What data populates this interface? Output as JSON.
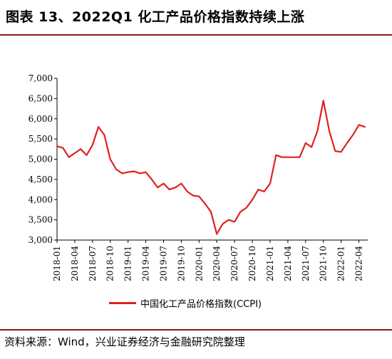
{
  "header": {
    "title": "图表 13、2022Q1 化工产品价格指数持续上涨"
  },
  "footer": {
    "source": "资料来源：Wind，兴业证券经济与金融研究院整理"
  },
  "colors": {
    "line": "#e02020",
    "rule": "#8b1a1a",
    "axis": "#000000"
  },
  "chart_data": {
    "type": "line",
    "title": "",
    "xlabel": "",
    "ylabel": "",
    "ylim": [
      3000,
      7000
    ],
    "yticks": [
      3000,
      3500,
      4000,
      4500,
      5000,
      5500,
      6000,
      6500,
      7000
    ],
    "ytick_labels": [
      "3,000",
      "3,500",
      "4,000",
      "4,500",
      "5,000",
      "5,500",
      "6,000",
      "6,500",
      "7,000"
    ],
    "xticks": [
      "2018-01",
      "2018-04",
      "2018-07",
      "2018-10",
      "2019-01",
      "2019-04",
      "2019-07",
      "2019-10",
      "2020-01",
      "2020-04",
      "2020-07",
      "2020-10",
      "2021-01",
      "2021-04",
      "2021-07",
      "2021-10",
      "2022-01",
      "2022-04"
    ],
    "grid": false,
    "legend_position": "bottom",
    "series": [
      {
        "name": "中国化工产品价格指数(CCPI)",
        "x": [
          "2018-01",
          "2018-02",
          "2018-03",
          "2018-04",
          "2018-05",
          "2018-06",
          "2018-07",
          "2018-08",
          "2018-09",
          "2018-10",
          "2018-11",
          "2018-12",
          "2019-01",
          "2019-02",
          "2019-03",
          "2019-04",
          "2019-05",
          "2019-06",
          "2019-07",
          "2019-08",
          "2019-09",
          "2019-10",
          "2019-11",
          "2019-12",
          "2020-01",
          "2020-02",
          "2020-03",
          "2020-04",
          "2020-05",
          "2020-06",
          "2020-07",
          "2020-08",
          "2020-09",
          "2020-10",
          "2020-11",
          "2020-12",
          "2021-01",
          "2021-02",
          "2021-03",
          "2021-04",
          "2021-05",
          "2021-06",
          "2021-07",
          "2021-08",
          "2021-09",
          "2021-10",
          "2021-11",
          "2021-12",
          "2022-01",
          "2022-02",
          "2022-03",
          "2022-04",
          "2022-05"
        ],
        "values": [
          5320,
          5280,
          5050,
          5150,
          5250,
          5100,
          5350,
          5800,
          5600,
          5000,
          4750,
          4650,
          4680,
          4700,
          4650,
          4680,
          4500,
          4300,
          4400,
          4250,
          4300,
          4400,
          4200,
          4100,
          4080,
          3900,
          3700,
          3150,
          3400,
          3500,
          3450,
          3700,
          3800,
          4000,
          4250,
          4200,
          4400,
          5100,
          5050,
          5050,
          5050,
          5050,
          5400,
          5300,
          5700,
          6450,
          5700,
          5200,
          5180,
          5400,
          5600,
          5850,
          5800
        ]
      }
    ]
  }
}
